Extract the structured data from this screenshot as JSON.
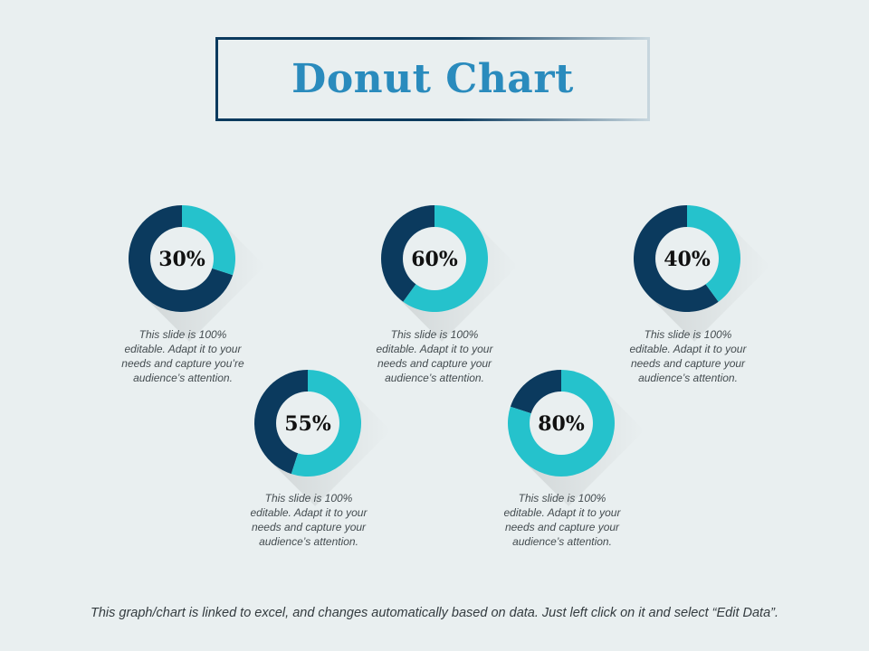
{
  "title": "Donut Chart",
  "footer": "This graph/chart is linked to excel, and changes automatically based on data. Just left click on it and select “Edit Data”.",
  "colors": {
    "filled": "#25c2cc",
    "remaining": "#0b3a5e",
    "hole": "#e9eff0"
  },
  "chart_data": {
    "type": "pie",
    "title": "Donut Chart",
    "donuts": [
      {
        "id": "donut-1",
        "label": "30%",
        "value": 30,
        "description": "This slide is 100% editable. Adapt it to your needs and capture you’re audience’s attention."
      },
      {
        "id": "donut-2",
        "label": "60%",
        "value": 60,
        "description": "This slide is 100% editable. Adapt it to your needs and capture your audience’s attention."
      },
      {
        "id": "donut-3",
        "label": "40%",
        "value": 40,
        "description": "This slide is 100% editable. Adapt it to your needs and capture your audience’s attention."
      },
      {
        "id": "donut-4",
        "label": "55%",
        "value": 55,
        "description": "This slide is 100% editable. Adapt it to your needs and capture your audience’s attention."
      },
      {
        "id": "donut-5",
        "label": "80%",
        "value": 80,
        "description": "This slide is 100% editable. Adapt it to your needs and capture your audience’s attention."
      }
    ]
  }
}
